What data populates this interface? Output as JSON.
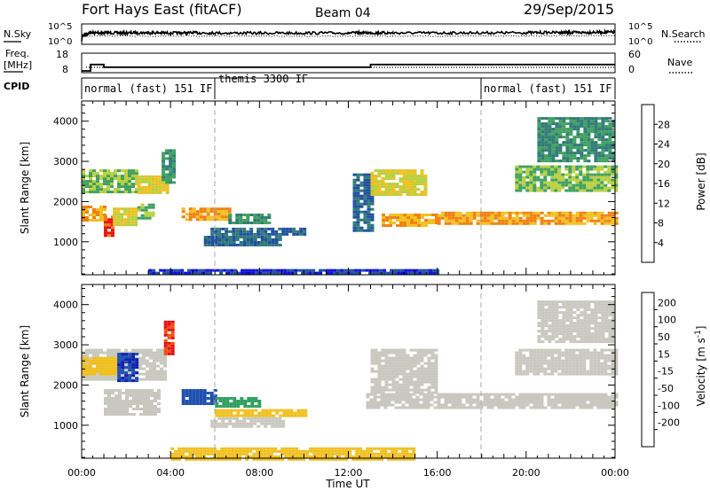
{
  "header": {
    "title": "Fort Hays East (fitACF)",
    "beam": "Beam 04",
    "date": "29/Sep/2015"
  },
  "strips": {
    "nsky_label": "N.Sky",
    "nsky_ticks": [
      "10^5",
      "10^0"
    ],
    "nsearch_label": "N.Search",
    "nsearch_ticks": [
      "10^5",
      "10^0"
    ],
    "freq_label_1": "Freq.",
    "freq_label_2": "[MHz]",
    "freq_ticks": [
      "18",
      "8"
    ],
    "nave_label": "Nave",
    "nave_ticks": [
      "60",
      "0"
    ],
    "cpid_label": "CPID",
    "cpid_segments": [
      {
        "label": "normal (fast) 151 IF",
        "start_h": 0,
        "end_h": 6
      },
      {
        "label": "themis 3300 IF",
        "start_h": 6,
        "end_h": 18
      },
      {
        "label": "normal (fast) 151 IF",
        "start_h": 18,
        "end_h": 24
      }
    ]
  },
  "power_panel": {
    "ylabel": "Slant Range [km]",
    "yticks": [
      "1000",
      "2000",
      "3000",
      "4000"
    ],
    "colorbar_label": "Power [dB]",
    "colorbar_ticks": [
      "4",
      "8",
      "12",
      "16",
      "20",
      "24",
      "28"
    ],
    "colorbar_colors": [
      "#1010e0",
      "#2050a0",
      "#307a78",
      "#40a060",
      "#b8d040",
      "#f0c020",
      "#f08010",
      "#e81010"
    ]
  },
  "velocity_panel": {
    "ylabel": "Slant Range [km]",
    "yticks": [
      "1000",
      "2000",
      "3000",
      "4000"
    ],
    "colorbar_label": "Velocity [m s",
    "colorbar_label_sup": "-1",
    "colorbar_label_end": "]",
    "colorbar_ticks": [
      "200",
      "100",
      "50",
      "15",
      "-15",
      "-50",
      "-100",
      "-200"
    ],
    "colorbar_colors": [
      "#1020b0",
      "#2050b0",
      "#30a060",
      "#70c040",
      "#c8c8c0",
      "#f0c020",
      "#f09020",
      "#f05010",
      "#e01010"
    ]
  },
  "xaxis": {
    "label": "Time UT",
    "ticks": [
      "00:00",
      "04:00",
      "08:00",
      "12:00",
      "16:00",
      "20:00",
      "00:00"
    ]
  },
  "chart_data": [
    {
      "type": "line",
      "panel": "N.Sky / N.Search",
      "x_units": "hours UT",
      "yscale": "log",
      "ylim": [
        1,
        100000
      ],
      "series": [
        {
          "name": "N.Sky",
          "x": [
            0,
            0.4,
            1,
            2,
            3,
            4,
            5,
            6,
            8,
            10,
            12,
            13,
            14,
            16,
            18,
            20,
            21.5,
            22,
            23,
            24
          ],
          "y": [
            1,
            1000,
            1100,
            1050,
            1200,
            1000,
            1100,
            1000,
            900,
            950,
            1000,
            1100,
            1000,
            1000,
            1100,
            1200,
            1500,
            1300,
            1600,
            1800
          ]
        },
        {
          "name": "N.Search",
          "x": [
            0,
            2,
            4,
            6,
            8,
            10,
            12,
            14,
            16,
            18,
            20,
            22,
            24
          ],
          "y": [
            100,
            110,
            100,
            105,
            100,
            95,
            100,
            105,
            100,
            110,
            120,
            130,
            140
          ]
        }
      ]
    },
    {
      "type": "line",
      "panel": "Freq. / Nave",
      "x_units": "hours UT",
      "ylim_freq": [
        8,
        18
      ],
      "ylim_nave": [
        0,
        60
      ],
      "series": [
        {
          "name": "Freq.",
          "x": [
            0,
            0.4,
            0.4,
            1.0,
            1.0,
            13.0,
            13.0,
            24
          ],
          "y": [
            8,
            8,
            12.5,
            12.5,
            10.6,
            10.6,
            12.5,
            12.5
          ]
        },
        {
          "name": "Nave",
          "x": [
            0.2,
            24
          ],
          "y": [
            15,
            15
          ]
        }
      ]
    },
    {
      "type": "heatmap",
      "panel": "Power [dB]",
      "x_units": "hours UT",
      "y_units": "km",
      "xlim": [
        0,
        24
      ],
      "ylim": [
        180,
        4500
      ],
      "patches": [
        {
          "x": [
            0.0,
            2.5
          ],
          "y": [
            2250,
            2800
          ],
          "level": 16
        },
        {
          "x": [
            2.5,
            3.8
          ],
          "y": [
            2250,
            2650
          ],
          "level": 20
        },
        {
          "x": [
            3.6,
            4.2
          ],
          "y": [
            2500,
            3300
          ],
          "level": 12
        },
        {
          "x": [
            0.0,
            1.0
          ],
          "y": [
            1550,
            1900
          ],
          "level": 24
        },
        {
          "x": [
            1.0,
            1.4
          ],
          "y": [
            1150,
            1650
          ],
          "level": 28
        },
        {
          "x": [
            1.4,
            2.5
          ],
          "y": [
            1450,
            1850
          ],
          "level": 20
        },
        {
          "x": [
            2.5,
            3.2
          ],
          "y": [
            1600,
            1950
          ],
          "level": 16
        },
        {
          "x": [
            4.5,
            6.6
          ],
          "y": [
            1550,
            1850
          ],
          "level": 24
        },
        {
          "x": [
            6.6,
            8.4
          ],
          "y": [
            1500,
            1700
          ],
          "level": 12
        },
        {
          "x": [
            5.5,
            9.0
          ],
          "y": [
            950,
            1150
          ],
          "level": 8
        },
        {
          "x": [
            5.8,
            10.0
          ],
          "y": [
            1200,
            1350
          ],
          "level": 8
        },
        {
          "x": [
            12.2,
            13.0
          ],
          "y": [
            1300,
            2700
          ],
          "level": 8
        },
        {
          "x": [
            13.0,
            15.5
          ],
          "y": [
            2200,
            2800
          ],
          "level": 20
        },
        {
          "x": [
            13.5,
            16.0
          ],
          "y": [
            1400,
            1700
          ],
          "level": 24
        },
        {
          "x": [
            16.0,
            24.0
          ],
          "y": [
            1450,
            1750
          ],
          "level": 24
        },
        {
          "x": [
            19.5,
            24.0
          ],
          "y": [
            2300,
            2900
          ],
          "level": 16
        },
        {
          "x": [
            20.5,
            24.0
          ],
          "y": [
            3000,
            4100
          ],
          "level": 12
        },
        {
          "x": [
            3.0,
            16.0
          ],
          "y": [
            200,
            320
          ],
          "level": 4
        }
      ]
    },
    {
      "type": "heatmap",
      "panel": "Velocity [m s-1]",
      "x_units": "hours UT",
      "y_units": "km",
      "xlim": [
        0,
        24
      ],
      "ylim": [
        180,
        4500
      ],
      "patches": [
        {
          "x": [
            0.0,
            3.8
          ],
          "y": [
            2150,
            2900
          ],
          "level": 0
        },
        {
          "x": [
            0.0,
            1.5
          ],
          "y": [
            2300,
            2700
          ],
          "level": -30
        },
        {
          "x": [
            1.6,
            2.4
          ],
          "y": [
            2100,
            2800
          ],
          "level": 200
        },
        {
          "x": [
            3.7,
            4.1
          ],
          "y": [
            2800,
            3600
          ],
          "level": -200
        },
        {
          "x": [
            1.0,
            3.5
          ],
          "y": [
            1300,
            1900
          ],
          "level": 0
        },
        {
          "x": [
            4.5,
            6.0
          ],
          "y": [
            1550,
            1900
          ],
          "level": 150
        },
        {
          "x": [
            6.0,
            8.0
          ],
          "y": [
            1500,
            1700
          ],
          "level": 60
        },
        {
          "x": [
            5.8,
            9.0
          ],
          "y": [
            1000,
            1200
          ],
          "level": 0
        },
        {
          "x": [
            6.0,
            10.0
          ],
          "y": [
            1250,
            1400
          ],
          "level": -20
        },
        {
          "x": [
            12.8,
            24.0
          ],
          "y": [
            1450,
            1800
          ],
          "level": 0
        },
        {
          "x": [
            13.0,
            16.0
          ],
          "y": [
            1800,
            2900
          ],
          "level": 0
        },
        {
          "x": [
            19.5,
            24.0
          ],
          "y": [
            2300,
            2900
          ],
          "level": 0
        },
        {
          "x": [
            20.5,
            24.0
          ],
          "y": [
            3100,
            4100
          ],
          "level": 0
        },
        {
          "x": [
            4.0,
            15.0
          ],
          "y": [
            180,
            450
          ],
          "level": -40
        }
      ]
    }
  ]
}
